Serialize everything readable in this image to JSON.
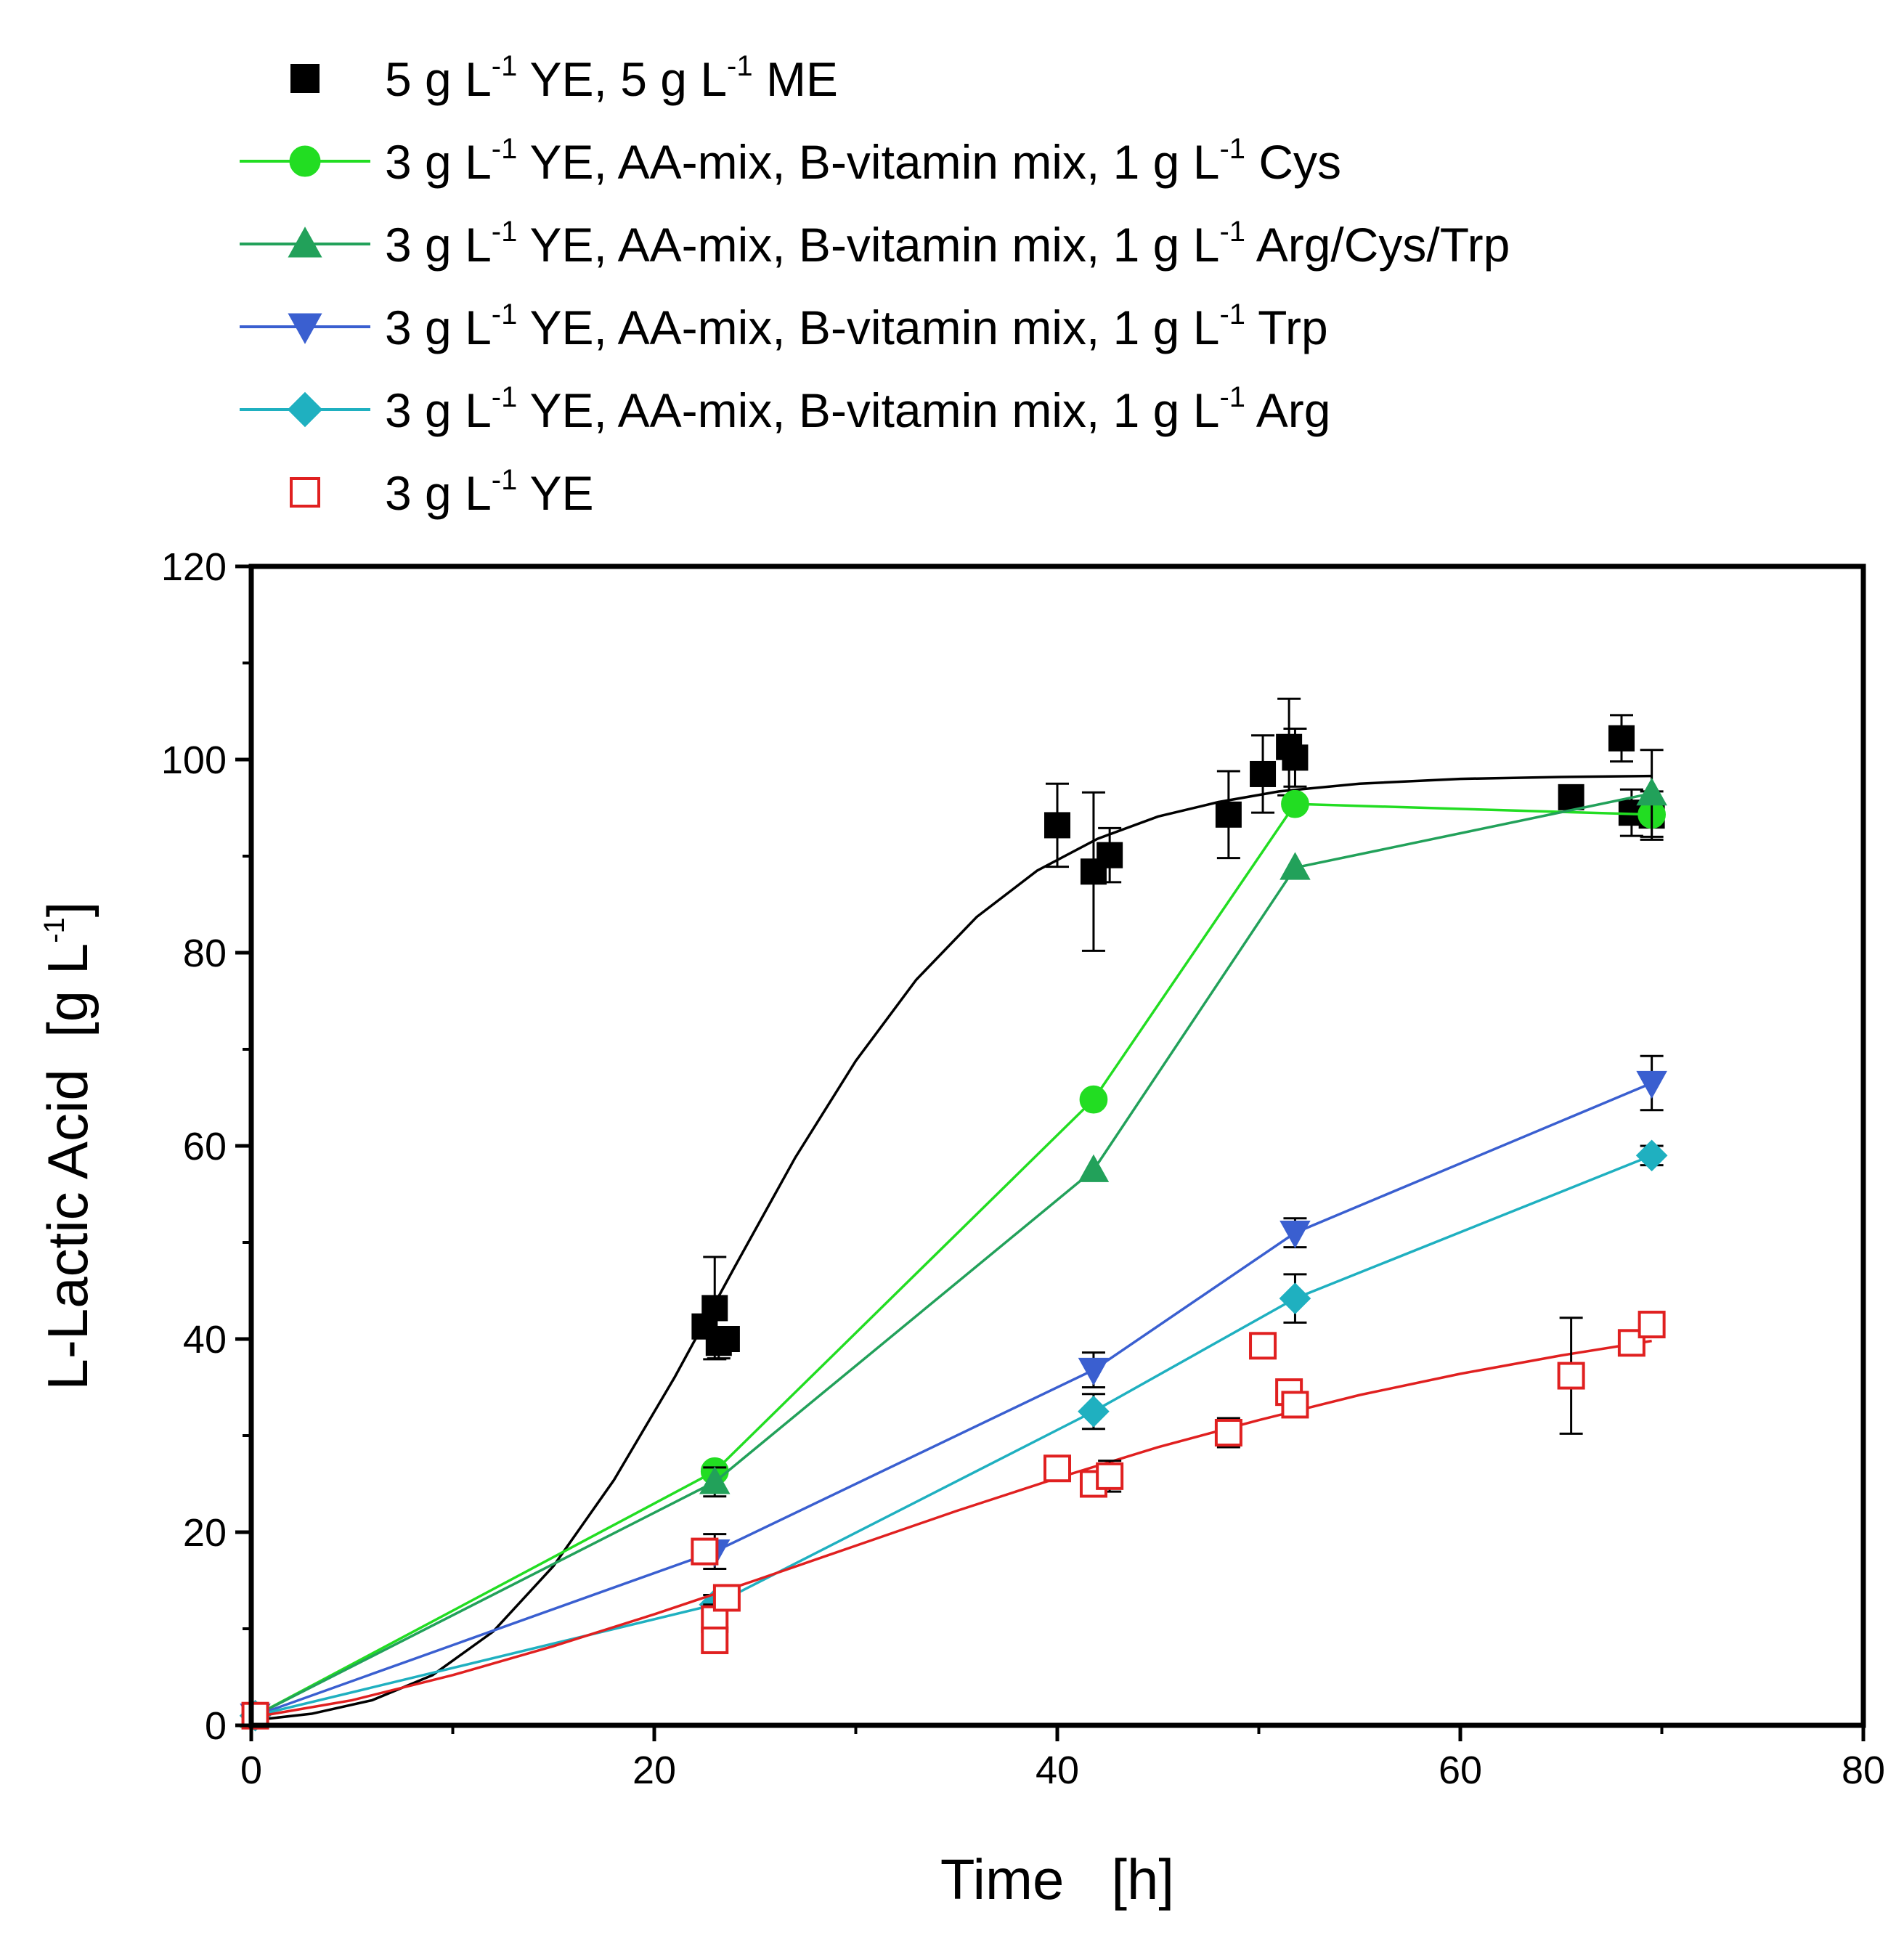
{
  "chart_data": {
    "type": "line",
    "title": "",
    "xlabel": "Time   [h]",
    "ylabel": "L-Lactic Acid  [g L",
    "ylabel_sup": "-1",
    "ylabel_end": "]",
    "xlim": [
      0,
      80
    ],
    "ylim": [
      0,
      120
    ],
    "xticks": [
      0,
      20,
      40,
      60,
      80
    ],
    "yticks": [
      0,
      20,
      40,
      60,
      80,
      100,
      120
    ],
    "grid": false,
    "legend_position": "top",
    "series": [
      {
        "name": "5 g L-1 YE, 5 g L-1 ME",
        "label_parts": [
          [
            "5 g L",
            "-1",
            " YE, 5 g L",
            "-1",
            " ME"
          ]
        ],
        "color": "#000000",
        "marker": "square",
        "filled": true,
        "line": "fit",
        "points": [
          {
            "x": 0.2,
            "y": 1,
            "err": 0
          },
          {
            "x": 22.5,
            "y": 41.3,
            "err": 0
          },
          {
            "x": 23.0,
            "y": 43.2,
            "err": 5.3
          },
          {
            "x": 23.2,
            "y": 39.6,
            "err": 1.6
          },
          {
            "x": 23.6,
            "y": 40.0,
            "err": 0
          },
          {
            "x": 40.0,
            "y": 93.2,
            "err": 4.3
          },
          {
            "x": 41.8,
            "y": 88.4,
            "err": 8.2
          },
          {
            "x": 42.6,
            "y": 90.1,
            "err": 2.8
          },
          {
            "x": 48.5,
            "y": 94.3,
            "err": 4.5
          },
          {
            "x": 50.2,
            "y": 98.5,
            "err": 4.0
          },
          {
            "x": 51.5,
            "y": 101.3,
            "err": 5.0
          },
          {
            "x": 51.8,
            "y": 100.2,
            "err": 3.0
          },
          {
            "x": 65.5,
            "y": 96.1,
            "err": 0
          },
          {
            "x": 68.0,
            "y": 102.2,
            "err": 2.4
          },
          {
            "x": 68.5,
            "y": 94.5,
            "err": 2.4
          },
          {
            "x": 69.5,
            "y": 94.2,
            "err": 2.5
          }
        ],
        "fit": [
          {
            "x": 0,
            "y": 0.5
          },
          {
            "x": 3,
            "y": 1.2
          },
          {
            "x": 6,
            "y": 2.6
          },
          {
            "x": 9,
            "y": 5.2
          },
          {
            "x": 12,
            "y": 9.7
          },
          {
            "x": 15,
            "y": 16.5
          },
          {
            "x": 18,
            "y": 25.4
          },
          {
            "x": 21,
            "y": 36.0
          },
          {
            "x": 24,
            "y": 47.5
          },
          {
            "x": 27,
            "y": 58.8
          },
          {
            "x": 30,
            "y": 68.8
          },
          {
            "x": 33,
            "y": 77.2
          },
          {
            "x": 36,
            "y": 83.7
          },
          {
            "x": 39,
            "y": 88.5
          },
          {
            "x": 42,
            "y": 91.8
          },
          {
            "x": 45,
            "y": 94.1
          },
          {
            "x": 48,
            "y": 95.6
          },
          {
            "x": 51,
            "y": 96.7
          },
          {
            "x": 55,
            "y": 97.5
          },
          {
            "x": 60,
            "y": 98.0
          },
          {
            "x": 65,
            "y": 98.2
          },
          {
            "x": 69.5,
            "y": 98.3
          }
        ]
      },
      {
        "name": "3 g L-1 YE, AA-mix, B-vitamin mix, 1 g L-1 Cys",
        "label_parts": [
          [
            "3 g L",
            "-1",
            " YE, AA-mix, B-vitamin mix, 1 g L",
            "-1",
            " Cys"
          ]
        ],
        "color": "#22dd22",
        "marker": "circle",
        "filled": true,
        "line": "connect",
        "points": [
          {
            "x": 0.2,
            "y": 1,
            "err": 0
          },
          {
            "x": 23.0,
            "y": 26.3,
            "err": 0
          },
          {
            "x": 41.8,
            "y": 64.8,
            "err": 0
          },
          {
            "x": 51.8,
            "y": 95.4,
            "err": 0
          },
          {
            "x": 69.5,
            "y": 94.3,
            "err": 0
          }
        ]
      },
      {
        "name": "3 g L-1 YE, AA-mix, B-vitamin mix, 1 g L-1 Arg/Cys/Trp",
        "label_parts": [
          [
            "3 g L",
            "-1",
            " YE, AA-mix, B-vitamin mix, 1 g L",
            "-1",
            " Arg/Cys/Trp"
          ]
        ],
        "color": "#22a15a",
        "marker": "triangle-up",
        "filled": true,
        "line": "connect",
        "points": [
          {
            "x": 0.2,
            "y": 1,
            "err": 0
          },
          {
            "x": 23.0,
            "y": 25.2,
            "err": 1.5
          },
          {
            "x": 41.8,
            "y": 57.5,
            "err": 0
          },
          {
            "x": 51.8,
            "y": 88.8,
            "err": 0
          },
          {
            "x": 69.5,
            "y": 96.5,
            "err": 4.5
          }
        ]
      },
      {
        "name": "3 g L-1 YE, AA-mix, B-vitamin mix, 1 g L-1 Trp",
        "label_parts": [
          [
            "3 g L",
            "-1",
            " YE, AA-mix, B-vitamin mix, 1 g L",
            "-1",
            " Trp"
          ]
        ],
        "color": "#3a5fd0",
        "marker": "triangle-down",
        "filled": true,
        "line": "connect",
        "points": [
          {
            "x": 0.2,
            "y": 1,
            "err": 0
          },
          {
            "x": 23.0,
            "y": 18.0,
            "err": 1.8
          },
          {
            "x": 41.8,
            "y": 36.8,
            "err": 1.8
          },
          {
            "x": 51.8,
            "y": 51.0,
            "err": 1.5
          },
          {
            "x": 69.5,
            "y": 66.5,
            "err": 2.8
          }
        ]
      },
      {
        "name": "3 g L-1 YE, AA-mix, B-vitamin mix, 1 g L-1 Arg",
        "label_parts": [
          [
            "3 g L",
            "-1",
            " YE, AA-mix, B-vitamin mix, 1 g L",
            "-1",
            " Arg"
          ]
        ],
        "color": "#1fb0c0",
        "marker": "diamond",
        "filled": true,
        "line": "connect",
        "points": [
          {
            "x": 0.2,
            "y": 1,
            "err": 0
          },
          {
            "x": 23.0,
            "y": 12.5,
            "err": 1.0
          },
          {
            "x": 41.8,
            "y": 32.5,
            "err": 1.8
          },
          {
            "x": 51.8,
            "y": 44.2,
            "err": 2.5
          },
          {
            "x": 69.5,
            "y": 59.0,
            "err": 1.0
          }
        ]
      },
      {
        "name": "3 g L-1 YE",
        "label_parts": [
          [
            "3 g L",
            "-1",
            " YE"
          ]
        ],
        "color": "#e02020",
        "marker": "square",
        "filled": false,
        "line": "fit",
        "points": [
          {
            "x": 0.2,
            "y": 1,
            "err": 0
          },
          {
            "x": 22.5,
            "y": 18.0,
            "err": 0.6
          },
          {
            "x": 23.0,
            "y": 11.0,
            "err": 1.5
          },
          {
            "x": 23.0,
            "y": 8.8,
            "err": 1.0
          },
          {
            "x": 23.6,
            "y": 13.2,
            "err": 1.0
          },
          {
            "x": 40.0,
            "y": 26.6,
            "err": 0
          },
          {
            "x": 41.8,
            "y": 25.0,
            "err": 1.0
          },
          {
            "x": 42.6,
            "y": 25.8,
            "err": 1.6
          },
          {
            "x": 48.5,
            "y": 30.3,
            "err": 1.5
          },
          {
            "x": 50.2,
            "y": 39.3,
            "err": 1.0
          },
          {
            "x": 51.5,
            "y": 34.5,
            "err": 1.0
          },
          {
            "x": 51.8,
            "y": 33.2,
            "err": 1.0
          },
          {
            "x": 65.5,
            "y": 36.2,
            "err": 6.0
          },
          {
            "x": 68.5,
            "y": 39.6,
            "err": 1.0
          },
          {
            "x": 69.5,
            "y": 41.5,
            "err": 1.0
          }
        ],
        "fit": [
          {
            "x": 0,
            "y": 0.8
          },
          {
            "x": 5,
            "y": 2.6
          },
          {
            "x": 10,
            "y": 5.2
          },
          {
            "x": 15,
            "y": 8.2
          },
          {
            "x": 20,
            "y": 11.5
          },
          {
            "x": 25,
            "y": 15.0
          },
          {
            "x": 30,
            "y": 18.6
          },
          {
            "x": 35,
            "y": 22.2
          },
          {
            "x": 40,
            "y": 25.6
          },
          {
            "x": 45,
            "y": 28.8
          },
          {
            "x": 50,
            "y": 31.6
          },
          {
            "x": 55,
            "y": 34.2
          },
          {
            "x": 60,
            "y": 36.4
          },
          {
            "x": 65,
            "y": 38.3
          },
          {
            "x": 69.5,
            "y": 39.8
          }
        ]
      }
    ]
  }
}
